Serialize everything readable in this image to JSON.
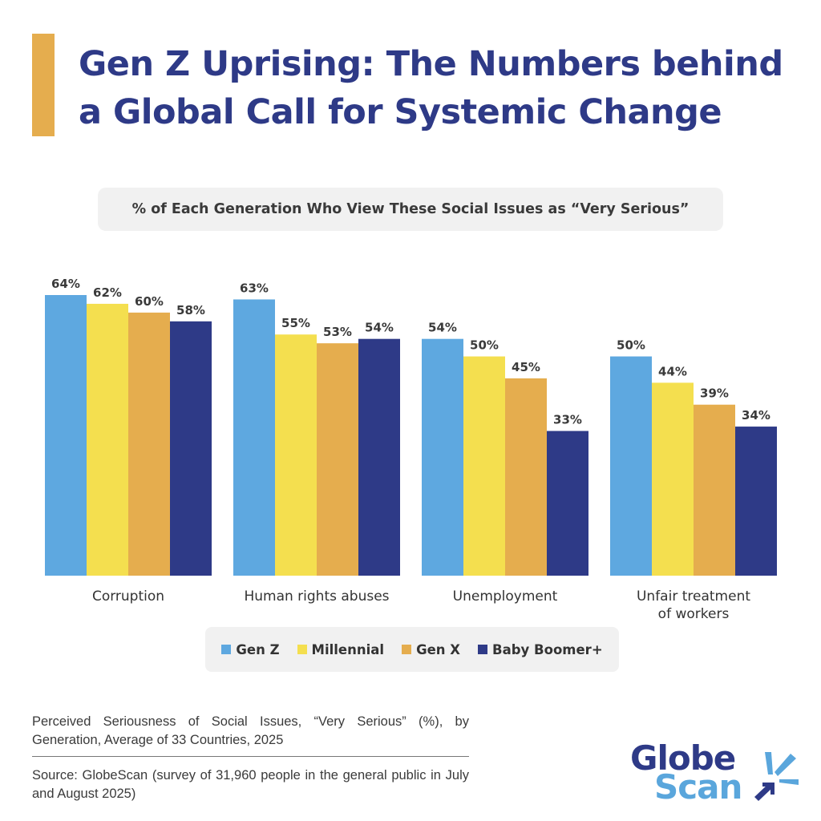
{
  "header": {
    "title_line1": "Gen Z Uprising: The Numbers behind",
    "title_line2": "a Global Call for Systemic Change"
  },
  "colors": {
    "accent": "#e5ad4e",
    "title": "#2e3a87",
    "gen_z": "#5ea8e0",
    "millennial": "#f4df4f",
    "gen_x": "#e5ad4e",
    "baby_boomer": "#2e3a87"
  },
  "chart_data": {
    "type": "bar",
    "title": "% of Each Generation Who View These Social Issues as “Very Serious”",
    "categories": [
      "Corruption",
      "Human rights abuses",
      "Unemployment",
      "Unfair treatment of workers"
    ],
    "series": [
      {
        "name": "Gen Z",
        "values": [
          64,
          63,
          54,
          50
        ],
        "color": "#5ea8e0",
        "labels": [
          "64%",
          "63%",
          "54%",
          "50%"
        ]
      },
      {
        "name": "Millennial",
        "values": [
          62,
          55,
          50,
          44
        ],
        "color": "#f4df4f",
        "labels": [
          "62%",
          "55%",
          "50%",
          "44%"
        ]
      },
      {
        "name": "Gen X",
        "values": [
          60,
          53,
          45,
          39
        ],
        "color": "#e5ad4e",
        "labels": [
          "60%",
          "53%",
          "45%",
          "39%"
        ]
      },
      {
        "name": "Baby Boomer+",
        "values": [
          58,
          54,
          33,
          34
        ],
        "color": "#2e3a87",
        "labels": [
          "58%",
          "54%",
          "33%",
          "34%"
        ]
      }
    ],
    "ylim": [
      0,
      64
    ],
    "grid": false,
    "legend_position": "bottom"
  },
  "footer": {
    "caption": "Perceived Seriousness of Social Issues, “Very Serious” (%), by Generation, Average of 33 Countries, 2025",
    "source": "Source: GlobeScan (survey of 31,960 people in the general public in July and August 2025)",
    "logo_line1": "Globe",
    "logo_line2": "Scan"
  }
}
